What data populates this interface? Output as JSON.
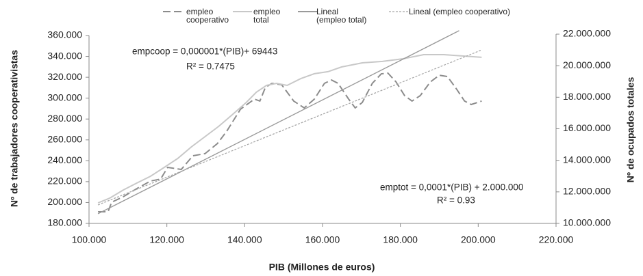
{
  "chart_data": {
    "type": "line",
    "xlabel": "PIB (Millones de euros)",
    "ylabel": "Nº de trabajadores cooperativistas",
    "y2label": "Nº de ocupados totales",
    "xlim": [
      100000,
      220000
    ],
    "xticks": [
      {
        "value": 100000,
        "label": "100.000"
      },
      {
        "value": 120000,
        "label": "120.000"
      },
      {
        "value": 140000,
        "label": "140.000"
      },
      {
        "value": 160000,
        "label": "160.000"
      },
      {
        "value": 180000,
        "label": "180.000"
      },
      {
        "value": 200000,
        "label": "200.000"
      },
      {
        "value": 220000,
        "label": "220.000"
      }
    ],
    "ylim": [
      180000,
      360000
    ],
    "yticks": [
      {
        "value": 180000,
        "label": "180.000"
      },
      {
        "value": 200000,
        "label": "200.000"
      },
      {
        "value": 220000,
        "label": "220.000"
      },
      {
        "value": 240000,
        "label": "240.000"
      },
      {
        "value": 260000,
        "label": "260.000"
      },
      {
        "value": 280000,
        "label": "280.000"
      },
      {
        "value": 300000,
        "label": "300.000"
      },
      {
        "value": 320000,
        "label": "320.000"
      },
      {
        "value": 340000,
        "label": "340.000"
      },
      {
        "value": 360000,
        "label": "360.000"
      }
    ],
    "y2lim": [
      10000000,
      22000000
    ],
    "y2ticks": [
      {
        "value": 10000000,
        "label": "10.000.000"
      },
      {
        "value": 12000000,
        "label": "12.000.000"
      },
      {
        "value": 14000000,
        "label": "14.000.000"
      },
      {
        "value": 16000000,
        "label": "16.000.000"
      },
      {
        "value": 18000000,
        "label": "18.000.000"
      },
      {
        "value": 20000000,
        "label": "20.000.000"
      },
      {
        "value": 22000000,
        "label": "22.000.000"
      }
    ],
    "grid": false,
    "legend": "top",
    "series": [
      {
        "name": "empleo cooperativo",
        "color": "#8c8c8c",
        "dash": "dashed",
        "axis": "y",
        "x": [
          102300,
          104900,
          105800,
          108800,
          112300,
          115800,
          118400,
          120200,
          123700,
          126700,
          129800,
          133000,
          135400,
          138900,
          142500,
          143900,
          145300,
          147000,
          149500,
          152600,
          155300,
          157900,
          160500,
          162300,
          164000,
          166700,
          168400,
          170200,
          172800,
          175100,
          176800,
          178900,
          181100,
          183000,
          185100,
          187700,
          190000,
          192100,
          194400,
          196500,
          198200,
          200900
        ],
        "values": [
          191100,
          191100,
          200300,
          205500,
          213400,
          220600,
          222500,
          233700,
          231700,
          244800,
          246800,
          256600,
          268400,
          289300,
          299100,
          297200,
          310200,
          314200,
          312900,
          297200,
          290600,
          299100,
          314200,
          317400,
          314200,
          299100,
          290600,
          295800,
          314200,
          323300,
          324000,
          315500,
          302400,
          297200,
          302400,
          315500,
          322000,
          320700,
          308900,
          297200,
          293900,
          297200
        ]
      },
      {
        "name": "empleo total",
        "color": "#c8c8c8",
        "dash": "solid",
        "axis": "y2",
        "x": [
          102300,
          105300,
          108800,
          112300,
          115800,
          119300,
          122800,
          126300,
          129800,
          133300,
          136800,
          140400,
          143000,
          145600,
          148200,
          150900,
          154400,
          157900,
          161400,
          164900,
          170200,
          175400,
          180700,
          186000,
          191200,
          196500,
          200900
        ],
        "values": [
          11300000,
          11600000,
          12120000,
          12560000,
          12990000,
          13550000,
          14120000,
          14850000,
          15500000,
          16150000,
          16890000,
          17670000,
          18320000,
          18750000,
          18880000,
          18750000,
          19180000,
          19490000,
          19620000,
          19920000,
          20180000,
          20270000,
          20440000,
          20700000,
          20700000,
          20610000,
          20530000
        ]
      },
      {
        "name": "Lineal\n(empleo total)",
        "color": "#9a9a9a",
        "dash": "solid",
        "axis": "y2",
        "x": [
          102300,
          195100
        ],
        "values": [
          10610000,
          22220000
        ]
      },
      {
        "name": "Lineal (empleo cooperativo)",
        "color": "#a8a8a8",
        "dash": "dotted",
        "axis": "y",
        "x": [
          102300,
          200900
        ],
        "values": [
          197700,
          346200
        ]
      }
    ],
    "annotations": [
      {
        "lines": [
          "empcoop = 0,000001*(PIB)+ 69443",
          "R² = 0.7475"
        ]
      },
      {
        "lines": [
          "emptot = 0,0001*(PIB) + 2.000.000",
          "R² = 0.93"
        ]
      }
    ]
  }
}
